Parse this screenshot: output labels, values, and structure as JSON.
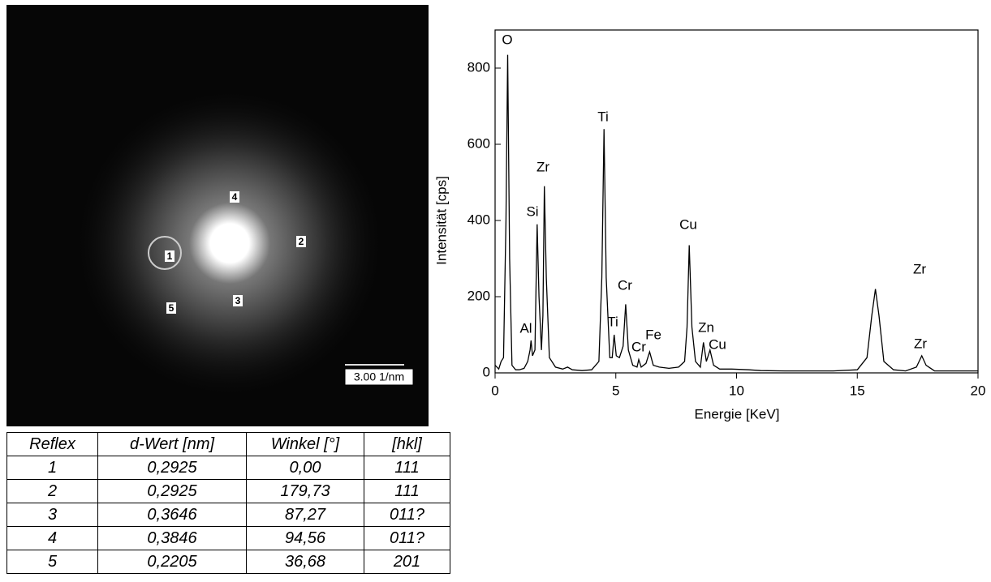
{
  "chart_data": {
    "type": "line",
    "x_label": "Energie [KeV]",
    "y_label": "Intensität [cps]",
    "x": [
      0,
      0.15,
      0.25,
      0.35,
      0.45,
      0.52,
      0.6,
      0.7,
      0.85,
      1.0,
      1.2,
      1.35,
      1.45,
      1.49,
      1.55,
      1.65,
      1.74,
      1.82,
      1.92,
      1.98,
      2.04,
      2.12,
      2.25,
      2.5,
      2.8,
      3.0,
      3.2,
      3.6,
      4.0,
      4.3,
      4.42,
      4.51,
      4.6,
      4.75,
      4.85,
      4.93,
      5.02,
      5.15,
      5.3,
      5.41,
      5.52,
      5.7,
      5.88,
      5.95,
      6.05,
      6.25,
      6.4,
      6.55,
      6.8,
      7.2,
      7.6,
      7.85,
      7.95,
      8.04,
      8.15,
      8.3,
      8.5,
      8.63,
      8.75,
      8.9,
      9.05,
      9.3,
      9.8,
      10.5,
      11.0,
      12.0,
      13.0,
      14.0,
      15.0,
      15.4,
      15.6,
      15.75,
      15.9,
      16.1,
      16.5,
      17.0,
      17.45,
      17.67,
      17.85,
      18.2,
      19.0,
      20.0
    ],
    "series": [
      {
        "color": "#000000",
        "values": [
          20,
          10,
          30,
          40,
          400,
          835,
          300,
          20,
          8,
          8,
          12,
          30,
          60,
          85,
          45,
          60,
          390,
          200,
          60,
          150,
          490,
          250,
          40,
          15,
          10,
          15,
          8,
          6,
          8,
          30,
          250,
          640,
          250,
          40,
          40,
          100,
          45,
          40,
          70,
          180,
          60,
          20,
          15,
          35,
          15,
          25,
          55,
          20,
          15,
          12,
          15,
          30,
          120,
          335,
          120,
          30,
          15,
          80,
          30,
          60,
          20,
          10,
          10,
          8,
          6,
          5,
          5,
          5,
          8,
          40,
          150,
          220,
          150,
          30,
          8,
          5,
          15,
          45,
          20,
          5,
          5,
          5
        ]
      }
    ],
    "xlim": [
      0,
      20
    ],
    "xticks": [
      0,
      5,
      10,
      15,
      20
    ],
    "ylim": [
      0,
      900
    ],
    "yticks": [
      0,
      200,
      400,
      600,
      800
    ],
    "annotations": [
      "O",
      "Al",
      "Si",
      "Zr",
      "Ti",
      "Ti",
      "Cr",
      "Cr",
      "Fe",
      "Cu",
      "Zn",
      "Cu",
      "Zr",
      "Zr"
    ]
  },
  "image": {
    "spots": [
      "1",
      "2",
      "3",
      "4",
      "5"
    ],
    "scale_bar": "3.00 1/nm"
  },
  "table": {
    "header": [
      "Reflex",
      "d-Wert [nm]",
      "Winkel [°]",
      "[hkl]"
    ],
    "rows": [
      [
        "1",
        "0,2925",
        "0,00",
        "111"
      ],
      [
        "2",
        "0,2925",
        "179,73",
        "111"
      ],
      [
        "3",
        "0,3646",
        "87,27",
        "011?"
      ],
      [
        "4",
        "0,3846",
        "94,56",
        "011?"
      ],
      [
        "5",
        "0,2205",
        "36,68",
        "201"
      ]
    ]
  }
}
